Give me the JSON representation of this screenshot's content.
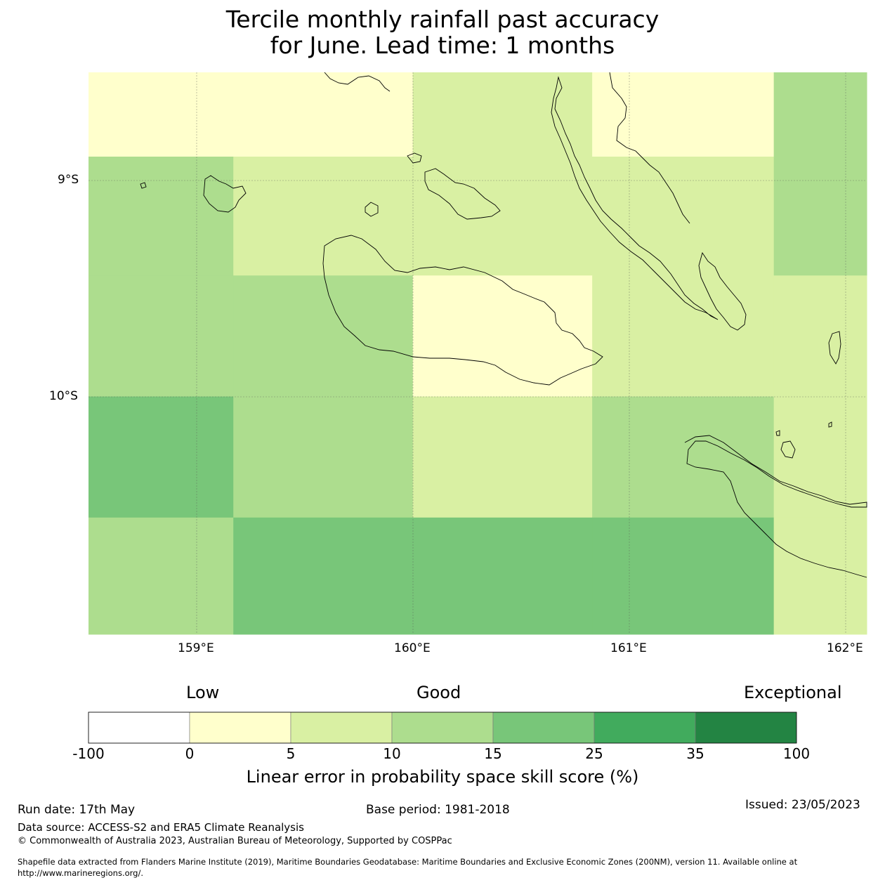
{
  "title_line1": "Tercile monthly rainfall past accuracy",
  "title_line2": "for June. Lead time: 1 months",
  "map": {
    "lon_range": [
      158.5,
      162.1
    ],
    "lat_range": [
      -8.5,
      -11.1
    ],
    "lon_labels": [
      "159°E",
      "160°E",
      "161°E",
      "162°E"
    ],
    "lat_labels": [
      "9°S",
      "10°S"
    ],
    "skill_grid_lon_edges": [
      158.5,
      159.17,
      160.0,
      160.83,
      161.67,
      162.1
    ],
    "skill_grid_lat_edges": [
      -8.5,
      -8.89,
      -9.44,
      -10.0,
      -10.56,
      -11.1
    ],
    "skill_grid_class": [
      [
        1,
        1,
        2,
        1,
        3
      ],
      [
        3,
        2,
        2,
        2,
        3
      ],
      [
        3,
        3,
        1,
        2,
        2
      ],
      [
        4,
        3,
        2,
        3,
        2
      ],
      [
        3,
        4,
        4,
        4,
        2
      ]
    ]
  },
  "legend": {
    "category_low": "Low",
    "category_good": "Good",
    "category_exceptional": "Exceptional",
    "ticks": [
      "-100",
      "0",
      "5",
      "10",
      "15",
      "25",
      "35",
      "100"
    ],
    "colors": [
      "#ffffff",
      "#ffffcc",
      "#d9f0a3",
      "#addd8e",
      "#78c679",
      "#41ab5d",
      "#238443"
    ],
    "title": "Linear error in probability space skill score (%)"
  },
  "footer": {
    "run_date": "Run date: 17th May",
    "base_period": "Base period: 1981-2018",
    "issued": "Issued: 23/05/2023",
    "data_source": "Data source: ACCESS-S2 and ERA5 Climate Reanalysis",
    "copyright": "© Commonwealth of Australia 2023, Australian Bureau of Meteorology, Supported by COSPPac",
    "shapefile_line1": "Shapefile data extracted from Flanders Marine Institute (2019), Maritime Boundaries Geodatabase: Maritime Boundaries and Exclusive Economic Zones (200NM), version 11. Available online at",
    "shapefile_line2": "http://www.marineregions.org/."
  }
}
